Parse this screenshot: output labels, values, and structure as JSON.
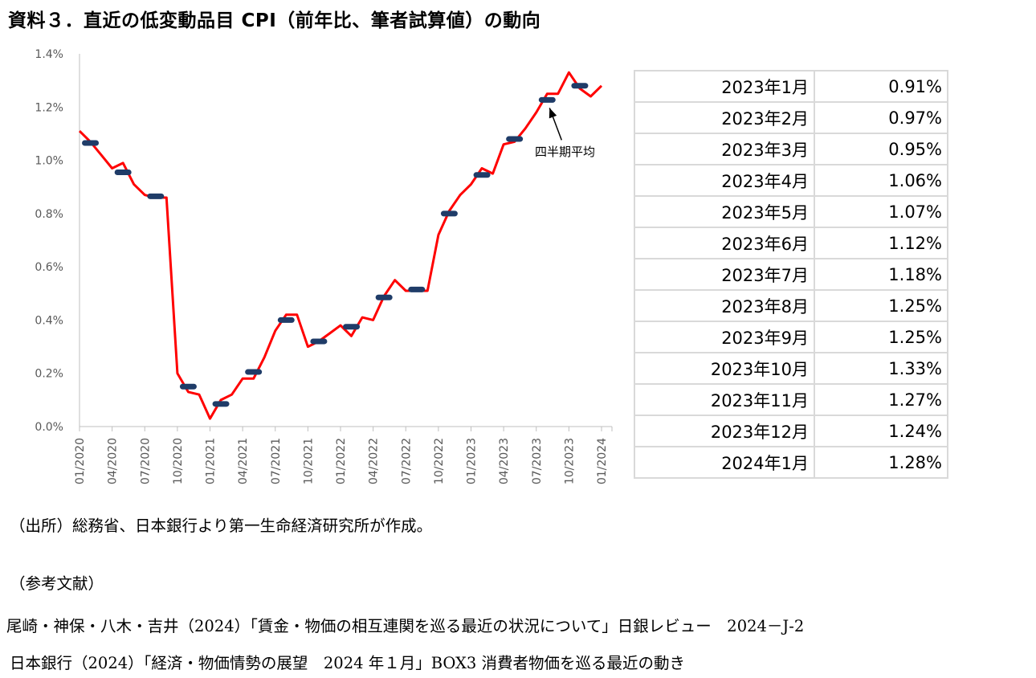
{
  "title": "資料３．直近の低変動品目 CPI（前年比、筆者試算値）の動向",
  "chart_data": {
    "type": "line",
    "title": "資料３．直近の低変動品目 CPI（前年比、筆者試算値）の動向",
    "ylim": [
      0,
      1.4
    ],
    "yticks": [
      "0.0%",
      "0.2%",
      "0.4%",
      "0.6%",
      "0.8%",
      "1.0%",
      "1.2%",
      "1.4%"
    ],
    "ytick_values": [
      0,
      0.2,
      0.4,
      0.6,
      0.8,
      1.0,
      1.2,
      1.4
    ],
    "xticks": [
      "01/2020",
      "04/2020",
      "07/2020",
      "10/2020",
      "01/2021",
      "04/2021",
      "07/2021",
      "10/2021",
      "01/2022",
      "04/2022",
      "07/2022",
      "10/2022",
      "01/2023",
      "04/2023",
      "07/2023",
      "10/2023",
      "01/2024"
    ],
    "x": [
      "01/2020",
      "02/2020",
      "03/2020",
      "04/2020",
      "05/2020",
      "06/2020",
      "07/2020",
      "08/2020",
      "09/2020",
      "10/2020",
      "11/2020",
      "12/2020",
      "01/2021",
      "02/2021",
      "03/2021",
      "04/2021",
      "05/2021",
      "06/2021",
      "07/2021",
      "08/2021",
      "09/2021",
      "10/2021",
      "11/2021",
      "12/2021",
      "01/2022",
      "02/2022",
      "03/2022",
      "04/2022",
      "05/2022",
      "06/2022",
      "07/2022",
      "08/2022",
      "09/2022",
      "10/2022",
      "11/2022",
      "12/2022",
      "01/2023",
      "02/2023",
      "03/2023",
      "04/2023",
      "05/2023",
      "06/2023",
      "07/2023",
      "08/2023",
      "09/2023",
      "10/2023",
      "11/2023",
      "12/2023",
      "01/2024"
    ],
    "series": [
      {
        "color": "#ff0000",
        "values": [
          1.11,
          1.07,
          1.02,
          0.97,
          0.99,
          0.91,
          0.87,
          0.86,
          0.86,
          0.2,
          0.13,
          0.12,
          0.03,
          0.1,
          0.12,
          0.18,
          0.18,
          0.26,
          0.36,
          0.42,
          0.42,
          0.3,
          0.32,
          0.35,
          0.38,
          0.34,
          0.41,
          0.4,
          0.49,
          0.55,
          0.51,
          0.51,
          0.51,
          0.72,
          0.81,
          0.87,
          0.91,
          0.97,
          0.95,
          1.06,
          1.07,
          1.12,
          1.18,
          1.25,
          1.25,
          1.33,
          1.27,
          1.24,
          1.28
        ]
      },
      {
        "color": "#1f3c68",
        "style": "quarter-average-dash",
        "quarters": [
          {
            "start": "01/2020",
            "value": 1.065
          },
          {
            "start": "04/2020",
            "value": 0.955
          },
          {
            "start": "07/2020",
            "value": 0.865
          },
          {
            "start": "10/2020",
            "value": 0.15
          },
          {
            "start": "01/2021",
            "value": 0.085
          },
          {
            "start": "04/2021",
            "value": 0.205
          },
          {
            "start": "07/2021",
            "value": 0.4
          },
          {
            "start": "10/2021",
            "value": 0.32
          },
          {
            "start": "01/2022",
            "value": 0.375
          },
          {
            "start": "04/2022",
            "value": 0.485
          },
          {
            "start": "07/2022",
            "value": 0.515
          },
          {
            "start": "10/2022",
            "value": 0.8
          },
          {
            "start": "01/2023",
            "value": 0.945
          },
          {
            "start": "04/2023",
            "value": 1.08
          },
          {
            "start": "07/2023",
            "value": 1.227
          },
          {
            "start": "10/2023",
            "value": 1.28
          }
        ]
      }
    ],
    "annotation": {
      "text": "四半期平均",
      "points_to": "07/2023"
    },
    "grid": false
  },
  "table": {
    "rows": [
      {
        "month": "2023年1月",
        "value": "0.91%"
      },
      {
        "month": "2023年2月",
        "value": "0.97%"
      },
      {
        "month": "2023年3月",
        "value": "0.95%"
      },
      {
        "month": "2023年4月",
        "value": "1.06%"
      },
      {
        "month": "2023年5月",
        "value": "1.07%"
      },
      {
        "month": "2023年6月",
        "value": "1.12%"
      },
      {
        "month": "2023年7月",
        "value": "1.18%"
      },
      {
        "month": "2023年8月",
        "value": "1.25%"
      },
      {
        "month": "2023年9月",
        "value": "1.25%"
      },
      {
        "month": "2023年10月",
        "value": "1.33%"
      },
      {
        "month": "2023年11月",
        "value": "1.27%"
      },
      {
        "month": "2023年12月",
        "value": "1.24%"
      },
      {
        "month": "2024年1月",
        "value": "1.28%"
      }
    ]
  },
  "notes": {
    "source": "（出所）総務省、日本銀行より第一生命経済研究所が作成。",
    "refs_heading": "（参考文献）",
    "ref1": "尾崎・神保・八木・吉井（2024）「賃金・物価の相互連関を巡る最近の状況について」日銀レビュー　2024－J-2",
    "ref2": "日本銀行（2024）「経済・物価情勢の展望　2024 年１月」BOX3 消費者物価を巡る最近の動き"
  }
}
